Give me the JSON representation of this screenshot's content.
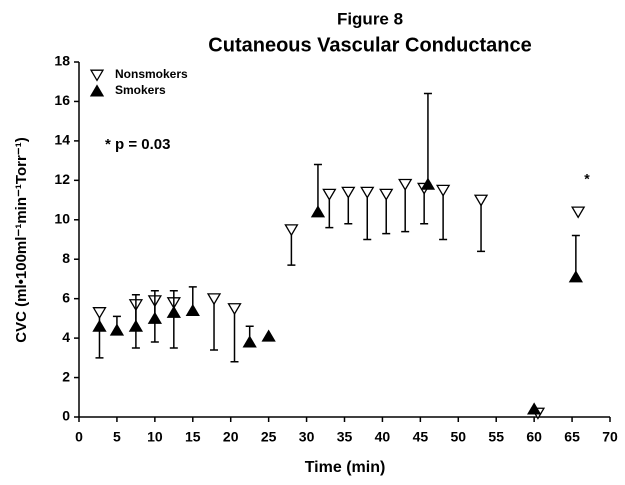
{
  "chart_data": {
    "type": "scatter",
    "title": "Figure 8",
    "subtitle": "Cutaneous Vascular Conductance",
    "xlabel": "Time (min)",
    "ylabel": "CVC (ml•100ml⁻¹min⁻¹Torr⁻¹)",
    "annotations": [
      "* p = 0.03",
      "*"
    ],
    "xlim": [
      0,
      70
    ],
    "xticks": [
      0,
      5,
      10,
      15,
      20,
      25,
      30,
      35,
      40,
      45,
      50,
      55,
      60,
      65,
      70
    ],
    "ylim": [
      0,
      18
    ],
    "yticks": [
      0,
      2,
      4,
      6,
      8,
      10,
      12,
      14,
      16,
      18
    ],
    "legend": "top-left",
    "series": [
      {
        "name": "Nonsmokers",
        "color": "#000000",
        "marker": "triangle-down-open",
        "error_direction": "down",
        "x": [
          2.7,
          7.5,
          10,
          12.5,
          17.8,
          20.5,
          28,
          33,
          35.5,
          38,
          40.5,
          43,
          45.5,
          48,
          53,
          60.5,
          65.8
        ],
        "values": [
          5.3,
          5.7,
          5.9,
          5.8,
          6.0,
          5.5,
          9.5,
          11.3,
          11.4,
          11.4,
          11.3,
          11.8,
          11.6,
          11.5,
          11.0,
          0.2,
          10.4
        ],
        "errors": [
          2.3,
          2.2,
          2.1,
          2.3,
          2.6,
          2.7,
          1.8,
          1.7,
          1.6,
          2.4,
          2.0,
          2.4,
          1.8,
          2.5,
          2.6,
          null,
          null
        ]
      },
      {
        "name": "Smokers",
        "color": "#000000",
        "marker": "triangle-up-filled",
        "error_direction": "up",
        "x": [
          2.7,
          5,
          7.5,
          10,
          12.5,
          15,
          22.5,
          25,
          31.5,
          46,
          60,
          65.5
        ],
        "values": [
          4.6,
          4.4,
          4.6,
          5.0,
          5.3,
          5.4,
          3.8,
          4.1,
          10.4,
          11.8,
          0.4,
          7.1
        ],
        "errors": [
          null,
          0.7,
          1.6,
          1.4,
          1.1,
          1.2,
          0.8,
          null,
          2.4,
          4.6,
          null,
          2.1
        ]
      }
    ]
  }
}
